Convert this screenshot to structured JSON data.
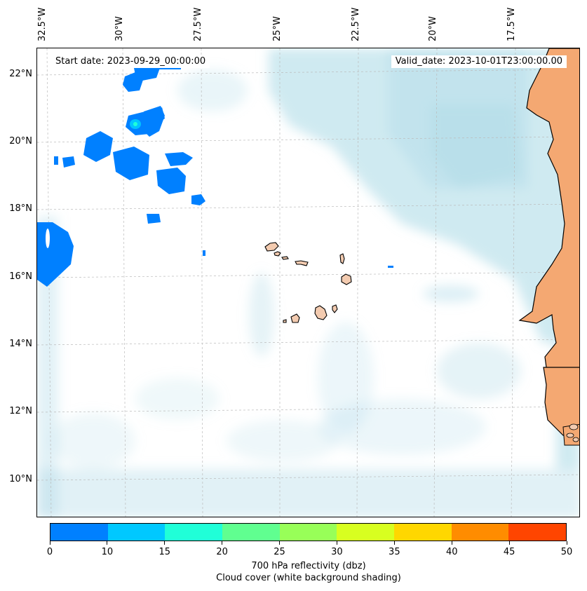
{
  "map": {
    "lon_labels": [
      "32.5°W",
      "30°W",
      "27.5°W",
      "25°W",
      "22.5°W",
      "20°W",
      "17.5°W"
    ],
    "lat_labels": [
      "22°N",
      "20°N",
      "18°N",
      "16°N",
      "14°N",
      "12°N",
      "10°N"
    ],
    "start_date": "Start date: 2023-09-29_00:00:00",
    "valid_date": "Valid_date: 2023-10-01T23:00:00.00",
    "colors": {
      "land": "#f4a872",
      "island_fill": "#f3cbb0",
      "cloud": "#a8d8e6",
      "reflectivity_low": "#0080ff",
      "reflectivity_mid": "#00c4ff"
    }
  },
  "colorbar": {
    "ticks": [
      "0",
      "10",
      "15",
      "20",
      "25",
      "30",
      "35",
      "40",
      "45",
      "50"
    ],
    "colors": [
      "#0080ff",
      "#00c8ff",
      "#20ffd8",
      "#60ff90",
      "#98ff58",
      "#d8ff20",
      "#ffd700",
      "#ff8c00",
      "#ff4500"
    ],
    "label_line1": "700 hPa reflectivity (dbz)",
    "label_line2": "Cloud cover (white background shading)"
  }
}
